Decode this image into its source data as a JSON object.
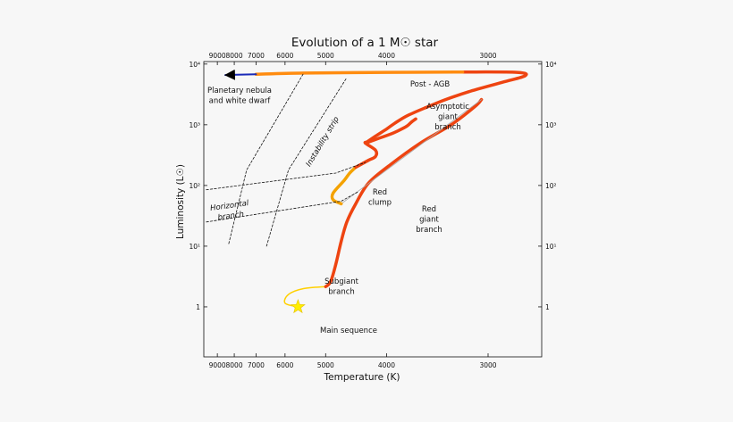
{
  "chart_data": {
    "type": "line",
    "title": "Evolution of a 1 M☉ star",
    "xlabel": "Temperature (K)",
    "ylabel": "Luminosity (L☉)",
    "x_scale": "reciprocal",
    "x_direction": "decreasing",
    "xlim": [
      10000,
      2650
    ],
    "ylim": [
      0.15,
      11000
    ],
    "y_scale": "log",
    "x_ticks": [
      9000,
      8000,
      7000,
      6000,
      5000,
      4000,
      3000
    ],
    "x_tick_labels": [
      "9000",
      "8000",
      "7000",
      "6000",
      "5000",
      "4000",
      "3000"
    ],
    "y_ticks": [
      1,
      10,
      100,
      1000,
      10000
    ],
    "y_tick_labels_left": [
      "1",
      "10¹",
      "10²",
      "10³",
      "10⁴"
    ],
    "y_tick_labels_right": [
      "1",
      "10¹",
      "10²",
      "10³",
      "10⁴"
    ],
    "grid": false,
    "annotations": [
      {
        "id": "main-sequence",
        "lines": [
          "Main sequence"
        ]
      },
      {
        "id": "subgiant-branch",
        "lines": [
          "Subgiant",
          "branch"
        ]
      },
      {
        "id": "red-giant-branch",
        "lines": [
          "Red",
          "giant",
          "branch"
        ]
      },
      {
        "id": "red-clump",
        "lines": [
          "Red",
          "clump"
        ]
      },
      {
        "id": "asymptotic-giant-branch",
        "lines": [
          "Asymptotic",
          "giant",
          "branch"
        ]
      },
      {
        "id": "post-agb",
        "lines": [
          "Post - AGB"
        ]
      },
      {
        "id": "planetary-nebula",
        "lines": [
          "Planetary nebula",
          "and white dwarf"
        ]
      },
      {
        "id": "horizontal-branch",
        "lines": [
          "Horizontal",
          "branch"
        ]
      },
      {
        "id": "instability-strip",
        "lines": [
          "Instability strip"
        ]
      }
    ],
    "marker": {
      "name": "Sun",
      "x": 5640,
      "y": 1.0,
      "shape": "star",
      "color": "#ffee00"
    },
    "series": [
      {
        "id": "main-to-subgiant",
        "color": "#ffd000",
        "width": 1.5,
        "style": "solid",
        "points": [
          [
            5640,
            1.0
          ],
          [
            6000,
            1.15
          ],
          [
            5900,
            1.6
          ],
          [
            5500,
            2.0
          ],
          [
            5000,
            2.15
          ]
        ]
      },
      {
        "id": "red-giant-branch",
        "color": "#ee4411",
        "width": 3.5,
        "style": "solid",
        "points": [
          [
            5000,
            2.15
          ],
          [
            4900,
            2.6
          ],
          [
            4800,
            5
          ],
          [
            4700,
            12
          ],
          [
            4600,
            25
          ],
          [
            4450,
            50
          ],
          [
            4250,
            110
          ],
          [
            3950,
            220
          ],
          [
            3600,
            500
          ],
          [
            3300,
            1000
          ],
          [
            3100,
            2000
          ],
          [
            3050,
            2600
          ]
        ]
      },
      {
        "id": "helium-flash",
        "color": "#aaaaaa",
        "width": 0.8,
        "style": "solid",
        "points": [
          [
            3050,
            2600
          ],
          [
            4700,
            50
          ]
        ]
      },
      {
        "id": "horizontal-branch-loop",
        "color": "#f4a200",
        "width": 3.5,
        "style": "solid",
        "points": [
          [
            4700,
            50
          ],
          [
            4850,
            58
          ],
          [
            4850,
            75
          ],
          [
            4650,
            120
          ],
          [
            4550,
            160
          ],
          [
            4450,
            200
          ]
        ]
      },
      {
        "id": "early-agb",
        "color": "#ee4411",
        "width": 3.5,
        "style": "solid",
        "points": [
          [
            4450,
            200
          ],
          [
            4250,
            260
          ],
          [
            4150,
            300
          ],
          [
            4150,
            380
          ],
          [
            4300,
            500
          ],
          [
            4250,
            520
          ],
          [
            4100,
            600
          ],
          [
            3950,
            700
          ],
          [
            3850,
            800
          ],
          [
            3750,
            950
          ],
          [
            3700,
            1100
          ],
          [
            3650,
            1250
          ]
        ]
      },
      {
        "id": "asymptotic-giant-branch",
        "color": "#ee4411",
        "width": 3.5,
        "style": "solid",
        "points": [
          [
            4300,
            500
          ],
          [
            4150,
            650
          ],
          [
            4000,
            850
          ],
          [
            3900,
            1050
          ],
          [
            3750,
            1400
          ],
          [
            3550,
            1900
          ],
          [
            3350,
            2600
          ],
          [
            3150,
            3500
          ],
          [
            2900,
            5000
          ],
          [
            2750,
            6400
          ],
          [
            2800,
            7300
          ],
          [
            3200,
            7400
          ]
        ]
      },
      {
        "id": "post-agb",
        "color": "#ff8c10",
        "width": 3.5,
        "style": "solid",
        "points": [
          [
            3200,
            7400
          ],
          [
            4000,
            7300
          ],
          [
            5500,
            7100
          ],
          [
            7000,
            6800
          ]
        ]
      },
      {
        "id": "planetary-nebula",
        "color": "#1a2ab8",
        "width": 2,
        "style": "solid",
        "points": [
          [
            7000,
            6800
          ],
          [
            8500,
            6600
          ]
        ]
      },
      {
        "id": "instability-strip-blue-edge",
        "color": "#111111",
        "width": 0.8,
        "style": "dashed",
        "points": [
          [
            8300,
            11
          ],
          [
            7400,
            180
          ],
          [
            5500,
            7000
          ]
        ]
      },
      {
        "id": "instability-strip-red-edge",
        "color": "#111111",
        "width": 0.8,
        "style": "dashed",
        "points": [
          [
            6600,
            10
          ],
          [
            5900,
            180
          ],
          [
            4600,
            6000
          ]
        ]
      },
      {
        "id": "horizontal-branch-upper",
        "color": "#111111",
        "width": 0.8,
        "style": "dashed",
        "points": [
          [
            9800,
            85
          ],
          [
            4800,
            160
          ],
          [
            4300,
            240
          ]
        ]
      },
      {
        "id": "horizontal-branch-lower",
        "color": "#111111",
        "width": 0.8,
        "style": "dashed",
        "points": [
          [
            9800,
            25
          ],
          [
            4700,
            55
          ],
          [
            4400,
            80
          ]
        ]
      }
    ]
  }
}
